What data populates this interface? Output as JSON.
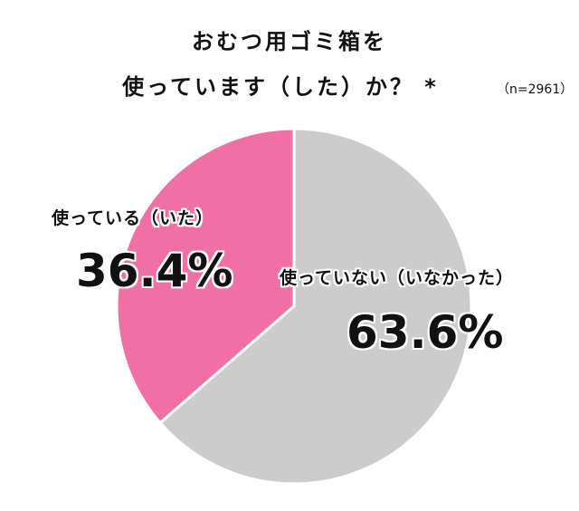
{
  "title_line1": "おむつ用ゴミ箱を",
  "title_line2": "使っています（した）か？ *",
  "sample_size": "（n=2961）",
  "chart_data": {
    "type": "pie",
    "title": "おむつ用ゴミ箱を使っています（した）か？ *",
    "slices": [
      {
        "label": "使っている（いた）",
        "value": 36.4,
        "value_label": "36.4%",
        "color": "#f070a5"
      },
      {
        "label": "使っていない（いなかった）",
        "value": 63.6,
        "value_label": "63.6%",
        "color": "#cccccc"
      }
    ],
    "start": "top",
    "direction": "counterclockwise-for-first-slice"
  }
}
